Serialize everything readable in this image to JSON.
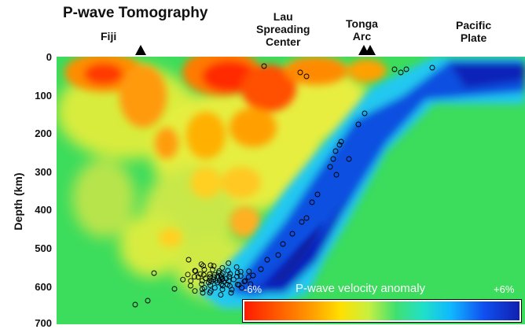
{
  "title": "P-wave Tomography",
  "labels": {
    "fiji": "Fiji",
    "lau_line1": "Lau",
    "lau_line2": "Spreading",
    "lau_line3": "Center",
    "tonga_line1": "Tonga",
    "tonga_line2": "Arc",
    "pacific_line1": "Pacific",
    "pacific_line2": "Plate"
  },
  "axis": {
    "ylabel": "Depth (km)",
    "ticks": [
      "0",
      "100",
      "200",
      "300",
      "400",
      "500",
      "600",
      "700"
    ]
  },
  "legend": {
    "title": "P-wave velocity anomaly",
    "min": "-6%",
    "max": "+6%"
  },
  "colors": {
    "background_anomaly": "#3cdc5c",
    "slow": "#ff2a00",
    "fast": "#1a2cd8",
    "earthquake_marker": "#000000"
  }
}
